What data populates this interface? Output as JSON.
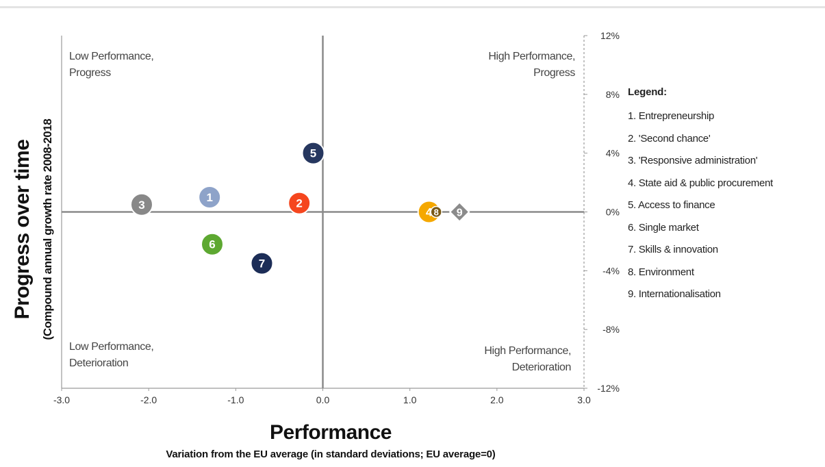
{
  "chart_data": {
    "type": "scatter",
    "xlabel": "Performance",
    "xlabel_sub": "Variation from the EU average (in standard deviations; EU average=0)",
    "ylabel": "Progress over time",
    "ylabel_sub": "(Compound annual growth rate 2008-2018",
    "xlim": [
      -3.0,
      3.0
    ],
    "ylim": [
      -0.12,
      0.12
    ],
    "x_ticks": [
      "-3.0",
      "-2.0",
      "-1.0",
      "0.0",
      "1.0",
      "2.0",
      "3.0"
    ],
    "x_tick_values": [
      -3,
      -2,
      -1,
      0,
      1,
      2,
      3
    ],
    "y_ticks": [
      "12%",
      "8%",
      "4%",
      "0%",
      "-4%",
      "-8%",
      "-12%"
    ],
    "y_tick_values": [
      0.12,
      0.08,
      0.04,
      0,
      -0.04,
      -0.08,
      -0.12
    ],
    "quadrants": {
      "top_left": [
        "Low Performance,",
        "Progress"
      ],
      "top_right": [
        "High Performance,",
        "Progress"
      ],
      "bottom_left": [
        "Low Performance,",
        "Deterioration"
      ],
      "bottom_right": [
        "High Performance,",
        "Deterioration"
      ]
    },
    "points": [
      {
        "label": "1",
        "x": -1.3,
        "y": 0.01,
        "color": "#8ea3c9",
        "shape": "circle"
      },
      {
        "label": "2",
        "x": -0.27,
        "y": 0.006,
        "color": "#f5461e",
        "shape": "circle"
      },
      {
        "label": "3",
        "x": -2.08,
        "y": 0.005,
        "color": "#888888",
        "shape": "circle"
      },
      {
        "label": "4",
        "x": 1.22,
        "y": 0.0,
        "color": "#f5a800",
        "shape": "circle"
      },
      {
        "label": "8",
        "x": 1.24,
        "y": 0.0,
        "color": "#7a5a18",
        "shape": "small-circle"
      },
      {
        "label": "5",
        "x": -0.11,
        "y": 0.04,
        "color": "#26375f",
        "shape": "circle"
      },
      {
        "label": "6",
        "x": -1.27,
        "y": -0.022,
        "color": "#5da831",
        "shape": "circle"
      },
      {
        "label": "7",
        "x": -0.7,
        "y": -0.035,
        "color": "#1c2d57",
        "shape": "circle"
      },
      {
        "label": "9",
        "x": 1.57,
        "y": 0.0,
        "color": "#8b8b8b",
        "shape": "diamond"
      }
    ],
    "legend": {
      "title": "Legend:",
      "placement": "right",
      "items": [
        "1. Entrepreneurship",
        "2. 'Second chance'",
        "3. 'Responsive administration'",
        "4. State aid & public procurement",
        "5. Access to finance",
        "6. Single market",
        "7. Skills & innovation",
        "8. Environment",
        "9. Internationalisation"
      ]
    }
  }
}
